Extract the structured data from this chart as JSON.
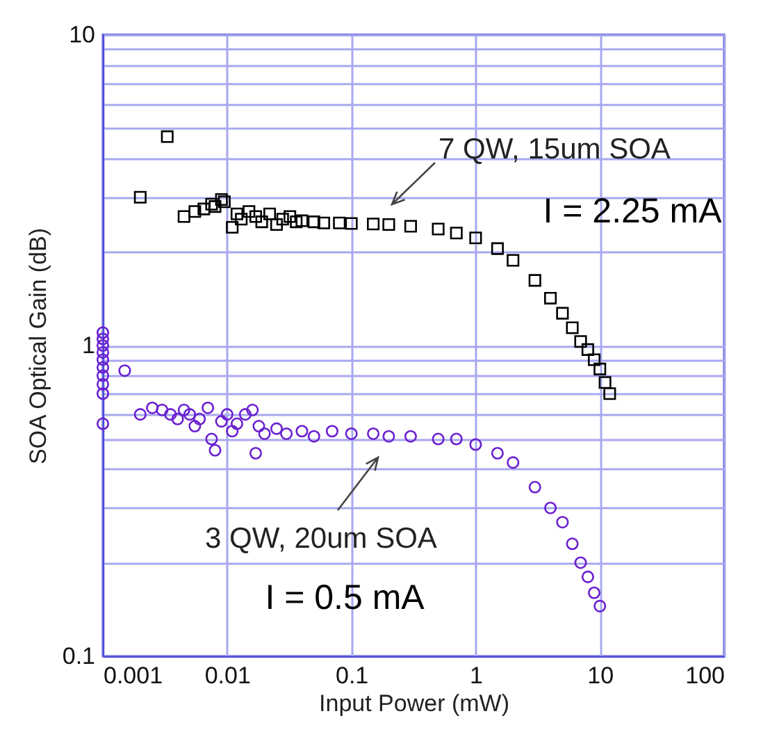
{
  "chart_data": {
    "type": "scatter",
    "xlabel": "Input Power (mW)",
    "ylabel": "SOA Optical Gain (dB)",
    "log": "xy",
    "grid": true,
    "xlim": [
      0.001,
      100
    ],
    "xticks": [
      0.001,
      0.01,
      0.1,
      1,
      10,
      100
    ],
    "ylim": [
      0.1,
      10
    ],
    "yticks": [
      0.1,
      {
        "value": 0.2,
        "label": null
      },
      {
        "value": 0.3,
        "label": null
      },
      {
        "value": 0.4,
        "label": null
      },
      {
        "value": 0.5,
        "label": null
      },
      {
        "value": 0.6,
        "label": null
      },
      {
        "value": 0.7,
        "label": null
      },
      {
        "value": 0.8,
        "label": null
      },
      {
        "value": 0.9,
        "label": null
      },
      1,
      {
        "value": 2,
        "label": null
      },
      {
        "value": 3,
        "label": null
      },
      {
        "value": 4,
        "label": null
      },
      {
        "value": 5,
        "label": null
      },
      {
        "value": 6,
        "label": null
      },
      {
        "value": 7,
        "label": null
      },
      {
        "value": 8,
        "label": null
      },
      {
        "value": 9,
        "label": null
      },
      10
    ],
    "series": [
      {
        "color": "#000000",
        "marker": "square",
        "x": [
          0.002,
          0.0033,
          0.0045,
          0.0055,
          0.0065,
          0.0075,
          0.008,
          0.009,
          0.0095,
          0.011,
          0.012,
          0.013,
          0.015,
          0.017,
          0.019,
          0.022,
          0.025,
          0.028,
          0.032,
          0.036,
          0.04,
          0.05,
          0.06,
          0.08,
          0.1,
          0.15,
          0.2,
          0.3,
          0.5,
          0.7,
          1,
          1.5,
          2,
          3,
          4,
          5,
          6,
          7,
          8,
          9,
          10,
          11,
          12
        ],
        "values": [
          3.0,
          4.7,
          2.6,
          2.7,
          2.75,
          2.85,
          2.8,
          2.95,
          2.9,
          2.4,
          2.65,
          2.55,
          2.7,
          2.6,
          2.5,
          2.65,
          2.45,
          2.55,
          2.6,
          2.5,
          2.52,
          2.5,
          2.48,
          2.48,
          2.47,
          2.46,
          2.45,
          2.42,
          2.37,
          2.3,
          2.22,
          2.05,
          1.88,
          1.62,
          1.42,
          1.27,
          1.14,
          1.03,
          0.97,
          0.9,
          0.84,
          0.76,
          0.7
        ]
      },
      {
        "color": "#6a1fd0",
        "marker": "circle",
        "x": [
          0.001,
          0.001,
          0.001,
          0.001,
          0.001,
          0.001,
          0.001,
          0.001,
          0.001,
          0.001,
          0.0015,
          0.002,
          0.0025,
          0.003,
          0.0035,
          0.004,
          0.0045,
          0.005,
          0.0055,
          0.006,
          0.007,
          0.0075,
          0.008,
          0.009,
          0.01,
          0.011,
          0.012,
          0.014,
          0.016,
          0.017,
          0.018,
          0.02,
          0.025,
          0.03,
          0.04,
          0.05,
          0.07,
          0.1,
          0.15,
          0.2,
          0.3,
          0.5,
          0.7,
          1,
          1.5,
          2,
          3,
          4,
          5,
          6,
          7,
          8,
          9,
          10
        ],
        "values": [
          1.1,
          1.05,
          1.0,
          0.95,
          0.9,
          0.85,
          0.8,
          0.75,
          0.7,
          0.56,
          0.83,
          0.6,
          0.63,
          0.62,
          0.6,
          0.58,
          0.62,
          0.6,
          0.55,
          0.58,
          0.63,
          0.5,
          0.46,
          0.57,
          0.6,
          0.53,
          0.56,
          0.6,
          0.62,
          0.45,
          0.55,
          0.52,
          0.54,
          0.52,
          0.53,
          0.51,
          0.53,
          0.52,
          0.52,
          0.51,
          0.51,
          0.5,
          0.5,
          0.48,
          0.45,
          0.42,
          0.35,
          0.3,
          0.27,
          0.23,
          0.2,
          0.18,
          0.16,
          0.145
        ]
      }
    ],
    "annotations": [
      "7 QW, 15um SOA",
      "I = 2.25 mA",
      "3 QW, 20um SOA",
      "I = 0.5 mA"
    ]
  }
}
